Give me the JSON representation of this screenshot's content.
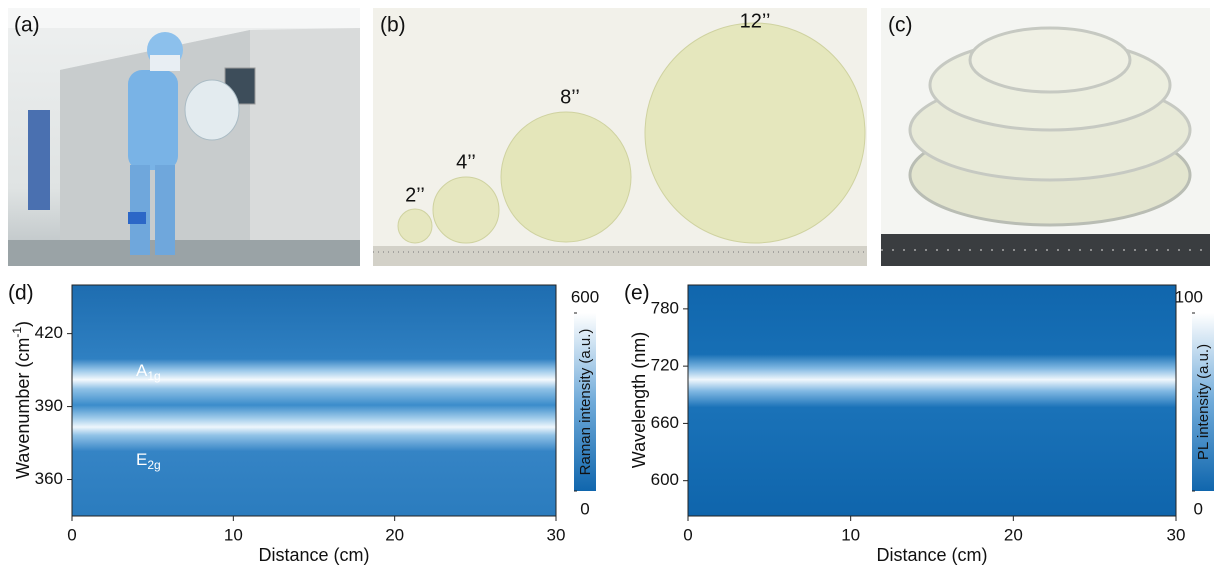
{
  "panels": [
    {
      "label": "(a)"
    },
    {
      "label": "(b)",
      "wafer_sizes": [
        "2’’",
        "4’’",
        "8’’",
        "12’’"
      ]
    },
    {
      "label": "(c)"
    },
    {
      "label": "(d)",
      "type": "heatmap",
      "xlabel": "Distance (cm)",
      "ylabel": {
        "text": "Wavenumber (cm",
        "sup": "-1",
        "end": ")"
      },
      "xlim": [
        0,
        30
      ],
      "xticks": [
        0,
        10,
        20,
        30
      ],
      "ylim": [
        345,
        440
      ],
      "yticks": [
        360,
        390,
        420
      ],
      "annotations": [
        {
          "text": "A",
          "sub": "1g"
        },
        {
          "text": "E",
          "sub": "2g"
        }
      ],
      "colorbar": {
        "label": "Raman intensity (a.u.)",
        "lim": [
          0,
          600
        ],
        "ticks": [
          0,
          600
        ]
      }
    },
    {
      "label": "(e)",
      "type": "heatmap",
      "xlabel": "Distance (cm)",
      "ylabel": {
        "text": "Wavelength (nm)"
      },
      "xlim": [
        0,
        30
      ],
      "xticks": [
        0,
        10,
        20,
        30
      ],
      "ylim": [
        563,
        805
      ],
      "yticks": [
        600,
        660,
        720,
        780
      ],
      "colorbar": {
        "label": "PL intensity (a.u.)",
        "lim": [
          0,
          100
        ],
        "ticks": [
          0,
          100
        ]
      }
    }
  ]
}
